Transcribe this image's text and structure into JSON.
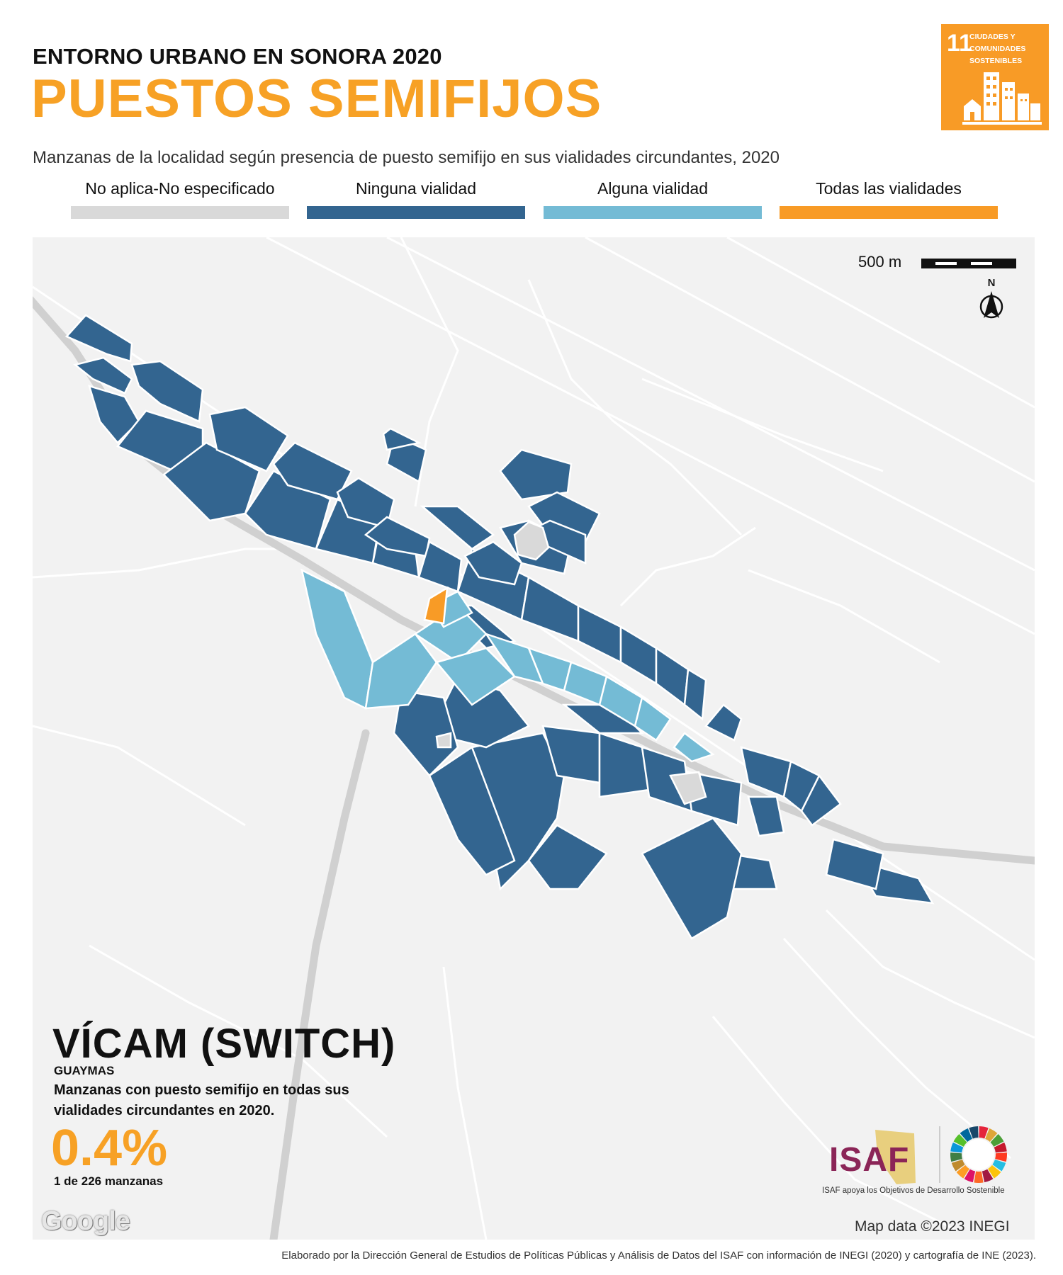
{
  "header": {
    "supertitle": "ENTORNO URBANO EN SONORA 2020",
    "title": "PUESTOS SEMIFIJOS",
    "subtitle": "Manzanas de la localidad según presencia de puesto semifijo en sus vialidades circundantes, 2020"
  },
  "sdg_badge": {
    "number": "11",
    "text": "CIUDADES Y COMUNIDADES SOSTENIBLES",
    "color": "#F89B26",
    "icon": "city-buildings-icon"
  },
  "legend": [
    {
      "label": "No aplica-No especificado",
      "color": "#D9D9D9"
    },
    {
      "label": "Ninguna vialidad",
      "color": "#336590"
    },
    {
      "label": "Alguna vialidad",
      "color": "#74BBD5"
    },
    {
      "label": "Todas las vialidades",
      "color": "#F89B26"
    }
  ],
  "map": {
    "scale_label": "500 m",
    "north_label": "N",
    "attribution": "Map data ©2023 INEGI",
    "provider_logo": "Google",
    "background_color": "#F2F2F2",
    "road_color": "#FFFFFF",
    "highway_color": "#D0D0D0"
  },
  "locality": {
    "name": "VÍCAM (SWITCH)",
    "municipality": "GUAYMAS",
    "kpi_description": "Manzanas con puesto semifijo en todas sus vialidades circundantes en 2020.",
    "kpi_value": "0.4%",
    "kpi_sub": "1 de 226 manzanas"
  },
  "logos": {
    "isaf": "ISAF",
    "isaf_caption": "ISAF apoya los Objetivos de Desarrollo Sostenible",
    "isaf_color": "#8B2557",
    "sdg_wheel": "sdg-wheel-icon"
  },
  "footer": "Elaborado por la Dirección General de Estudios de Políticas Públicas y Análisis de Datos del ISAF con información de INEGI (2020) y cartografía de INE (2023)."
}
